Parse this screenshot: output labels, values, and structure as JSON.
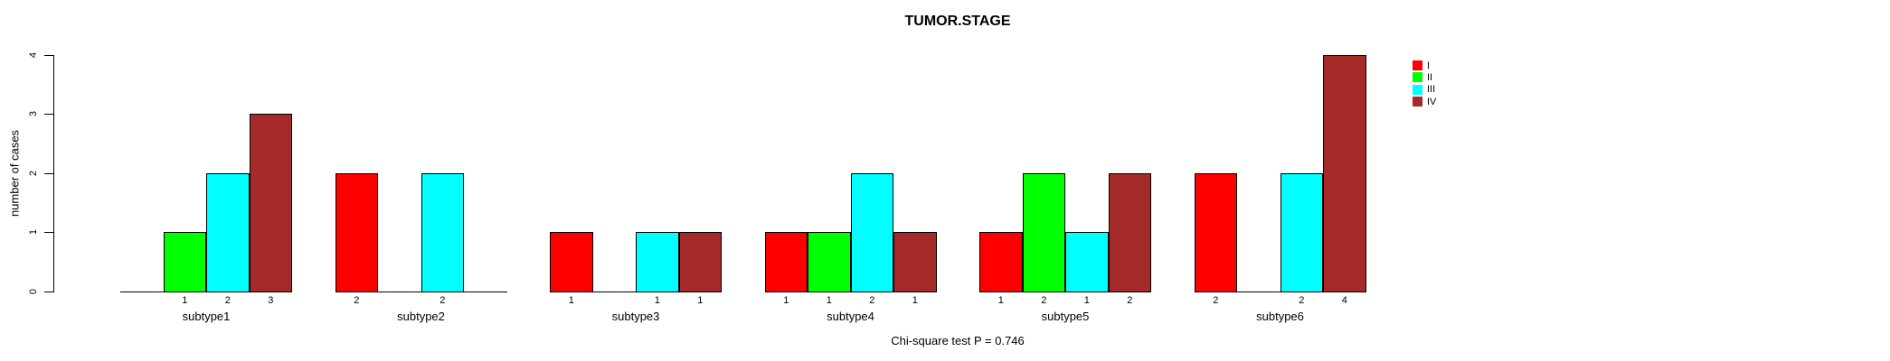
{
  "figure": {
    "background": "#ffffff",
    "text_color": "#000000",
    "axis_color": "#000000"
  },
  "chart_data": {
    "type": "bar",
    "title": "TUMOR.STAGE",
    "xlabel": "",
    "ylabel": "number of cases",
    "ylim": [
      0,
      4
    ],
    "yticks": [
      "0",
      "1",
      "2",
      "3",
      "4"
    ],
    "grid": false,
    "bar_value_labels_shown_for_nonzero_bars": true,
    "categories": [
      "subtype1",
      "subtype2",
      "subtype3",
      "subtype4",
      "subtype5",
      "subtype6"
    ],
    "series": [
      {
        "name": "I",
        "color": "#ff0000",
        "values": [
          0,
          2,
          1,
          1,
          1,
          2
        ]
      },
      {
        "name": "II",
        "color": "#00ff00",
        "values": [
          1,
          0,
          0,
          1,
          2,
          0
        ]
      },
      {
        "name": "III",
        "color": "#00ffff",
        "values": [
          2,
          2,
          1,
          2,
          1,
          2
        ]
      },
      {
        "name": "IV",
        "color": "#a52a2a",
        "values": [
          3,
          0,
          1,
          1,
          2,
          4
        ]
      }
    ],
    "legend": {
      "position": "right",
      "entries": [
        "I",
        "II",
        "III",
        "IV"
      ]
    },
    "annotation": "Chi-square test P = 0.746"
  }
}
